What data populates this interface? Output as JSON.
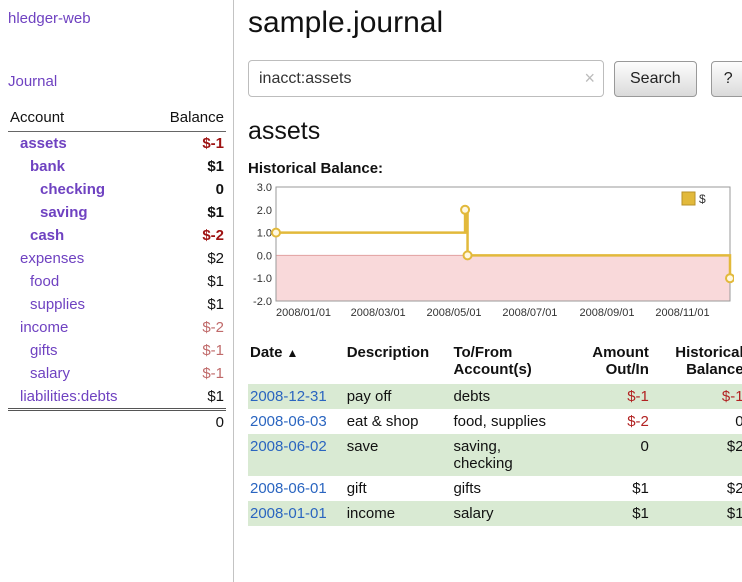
{
  "colors": {
    "link_purple": "#6f42c1",
    "negative_strong": "#9e1212",
    "negative_soft": "#c06a6a",
    "negative_amount": "#b22222",
    "date_link_blue": "#2a65c0",
    "row_stripe_green": "#d9ead3",
    "chart_line_gold": "#e2b93b",
    "chart_negative_fill": "#f9d9da"
  },
  "app": {
    "title": "hledger-web",
    "nav": {
      "journal": "Journal"
    }
  },
  "sidebar": {
    "header": {
      "account": "Account",
      "balance": "Balance"
    },
    "accounts": [
      {
        "name": "assets",
        "balance": "$-1",
        "indent": 1,
        "bold": true,
        "balance_style": "negative-strong"
      },
      {
        "name": "bank",
        "balance": "$1",
        "indent": 2,
        "bold": true,
        "balance_style": "strong"
      },
      {
        "name": "checking",
        "balance": "0",
        "indent": 3,
        "bold": true,
        "balance_style": "strong"
      },
      {
        "name": "saving",
        "balance": "$1",
        "indent": 3,
        "bold": true,
        "balance_style": "strong"
      },
      {
        "name": "cash",
        "balance": "$-2",
        "indent": 2,
        "bold": true,
        "balance_style": "negative-strong"
      },
      {
        "name": "expenses",
        "balance": "$2",
        "indent": 1,
        "bold": false,
        "balance_style": "normal"
      },
      {
        "name": "food",
        "balance": "$1",
        "indent": 2,
        "bold": false,
        "balance_style": "normal"
      },
      {
        "name": "supplies",
        "balance": "$1",
        "indent": 2,
        "bold": false,
        "balance_style": "normal"
      },
      {
        "name": "income",
        "balance": "$-2",
        "indent": 1,
        "bold": false,
        "balance_style": "negative"
      },
      {
        "name": "gifts",
        "balance": "$-1",
        "indent": 2,
        "bold": false,
        "balance_style": "negative"
      },
      {
        "name": "salary",
        "balance": "$-1",
        "indent": 2,
        "bold": false,
        "balance_style": "negative"
      },
      {
        "name": "liabilities:debts",
        "balance": "$1",
        "indent": 1,
        "bold": false,
        "balance_style": "normal"
      }
    ],
    "total": "0"
  },
  "main": {
    "title": "sample.journal",
    "search": {
      "value": "inacct:assets",
      "clear_icon": "×",
      "button_label": "Search",
      "help_label": "?"
    },
    "account_heading": "assets",
    "chart_title": "Historical Balance:"
  },
  "chart_data": {
    "type": "line",
    "subtype": "step",
    "title": "Historical Balance:",
    "legend": [
      {
        "label": "$",
        "color": "#e2b93b"
      }
    ],
    "legend_position": "top-right",
    "grid": false,
    "ylim": [
      -2.0,
      3.0
    ],
    "yticks": [
      {
        "label": "3.0",
        "value": 3
      },
      {
        "label": "2.0",
        "value": 2
      },
      {
        "label": "1.0",
        "value": 1
      },
      {
        "label": "0.0",
        "value": 0
      },
      {
        "label": "-1.0",
        "value": -1
      },
      {
        "label": "-2.0",
        "value": -2
      }
    ],
    "xdomain_days": [
      0,
      365
    ],
    "xticks": [
      {
        "label": "2008/01/01",
        "day": 0
      },
      {
        "label": "2008/03/01",
        "day": 60
      },
      {
        "label": "2008/05/01",
        "day": 121
      },
      {
        "label": "2008/07/01",
        "day": 182
      },
      {
        "label": "2008/09/01",
        "day": 244
      },
      {
        "label": "2008/11/01",
        "day": 305
      }
    ],
    "points": [
      {
        "date": "2008-01-01",
        "day": 0,
        "value": 1
      },
      {
        "date": "2008-06-01",
        "day": 152,
        "value": 2
      },
      {
        "date": "2008-06-03",
        "day": 154,
        "value": 0
      },
      {
        "date": "2008-12-31",
        "day": 365,
        "value": -1
      }
    ]
  },
  "register": {
    "headers": {
      "date": "Date",
      "sort_icon": "▲",
      "description": "Description",
      "accounts": "To/From Account(s)",
      "amount": "Amount Out/In",
      "balance": "Historical Balance"
    },
    "rows": [
      {
        "date": "2008-12-31",
        "description": "pay off",
        "accounts": "debts",
        "amount": "$-1",
        "balance": "$-1"
      },
      {
        "date": "2008-06-03",
        "description": "eat & shop",
        "accounts": "food, supplies",
        "amount": "$-2",
        "balance": "0"
      },
      {
        "date": "2008-06-02",
        "description": "save",
        "accounts": "saving, checking",
        "amount": "0",
        "balance": "$2"
      },
      {
        "date": "2008-06-01",
        "description": "gift",
        "accounts": "gifts",
        "amount": "$1",
        "balance": "$2"
      },
      {
        "date": "2008-01-01",
        "description": "income",
        "accounts": "salary",
        "amount": "$1",
        "balance": "$1"
      }
    ]
  }
}
